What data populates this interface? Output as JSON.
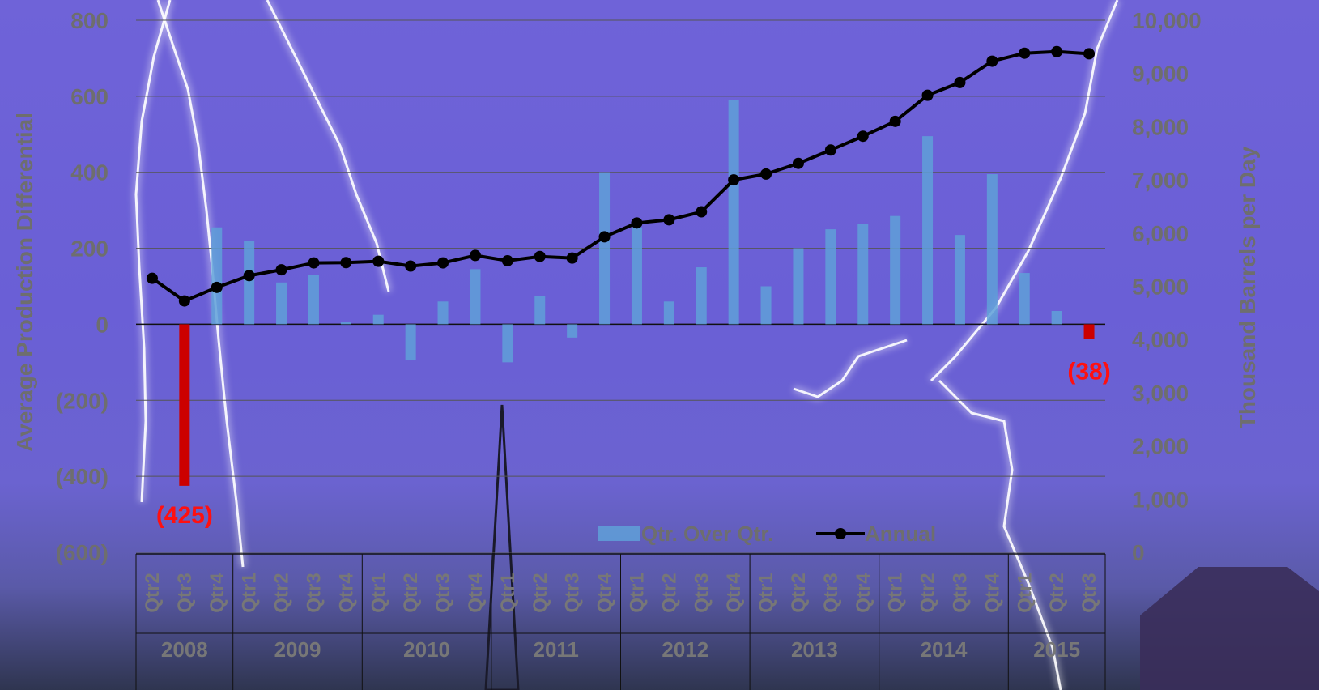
{
  "chart_data": {
    "type": "bar+line",
    "categories": [
      {
        "q": "Qtr2",
        "y": "2008"
      },
      {
        "q": "Qtr3",
        "y": "2008"
      },
      {
        "q": "Qtr4",
        "y": "2008"
      },
      {
        "q": "Qtr1",
        "y": "2009"
      },
      {
        "q": "Qtr2",
        "y": "2009"
      },
      {
        "q": "Qtr3",
        "y": "2009"
      },
      {
        "q": "Qtr4",
        "y": "2009"
      },
      {
        "q": "Qtr1",
        "y": "2010"
      },
      {
        "q": "Qtr2",
        "y": "2010"
      },
      {
        "q": "Qtr3",
        "y": "2010"
      },
      {
        "q": "Qtr4",
        "y": "2010"
      },
      {
        "q": "Qtr1",
        "y": "2011"
      },
      {
        "q": "Qtr2",
        "y": "2011"
      },
      {
        "q": "Qtr3",
        "y": "2011"
      },
      {
        "q": "Qtr4",
        "y": "2011"
      },
      {
        "q": "Qtr1",
        "y": "2012"
      },
      {
        "q": "Qtr2",
        "y": "2012"
      },
      {
        "q": "Qtr3",
        "y": "2012"
      },
      {
        "q": "Qtr4",
        "y": "2012"
      },
      {
        "q": "Qtr1",
        "y": "2013"
      },
      {
        "q": "Qtr2",
        "y": "2013"
      },
      {
        "q": "Qtr3",
        "y": "2013"
      },
      {
        "q": "Qtr4",
        "y": "2013"
      },
      {
        "q": "Qtr1",
        "y": "2014"
      },
      {
        "q": "Qtr2",
        "y": "2014"
      },
      {
        "q": "Qtr3",
        "y": "2014"
      },
      {
        "q": "Qtr4",
        "y": "2014"
      },
      {
        "q": "Qtr1",
        "y": "2015"
      },
      {
        "q": "Qtr2",
        "y": "2015"
      },
      {
        "q": "Qtr3",
        "y": "2015"
      }
    ],
    "years": [
      "2008",
      "2009",
      "2010",
      "2011",
      "2012",
      "2013",
      "2014",
      "2015"
    ],
    "series": [
      {
        "name": "Qtr. Over Qtr.",
        "axis": "left",
        "kind": "bar",
        "color": "#5fa0d8",
        "negative_color": "#cc0000",
        "values": [
          null,
          -425,
          255,
          220,
          110,
          130,
          5,
          25,
          -95,
          60,
          145,
          -100,
          75,
          -35,
          400,
          255,
          60,
          150,
          590,
          100,
          200,
          250,
          265,
          285,
          495,
          235,
          395,
          135,
          35,
          -38
        ]
      },
      {
        "name": "Annual",
        "axis": "right",
        "kind": "line",
        "color": "#000000",
        "values": [
          5150,
          4725,
          4980,
          5200,
          5310,
          5440,
          5445,
          5470,
          5380,
          5440,
          5580,
          5480,
          5560,
          5530,
          5930,
          6190,
          6250,
          6400,
          7000,
          7110,
          7310,
          7560,
          7820,
          8100,
          8590,
          8830,
          9230,
          9380,
          9410,
          9370
        ]
      }
    ],
    "highlight_labels": [
      {
        "index": 1,
        "text": "(425)"
      },
      {
        "index": 29,
        "text": "(38)"
      }
    ],
    "left_axis": {
      "title": "Average Production Differential",
      "min": -600,
      "max": 800,
      "ticks": [
        {
          "v": 800,
          "t": "800"
        },
        {
          "v": 600,
          "t": "600"
        },
        {
          "v": 400,
          "t": "400"
        },
        {
          "v": 200,
          "t": "200"
        },
        {
          "v": 0,
          "t": "0"
        },
        {
          "v": -200,
          "t": "(200)"
        },
        {
          "v": -400,
          "t": "(400)"
        },
        {
          "v": -600,
          "t": "(600)"
        }
      ]
    },
    "right_axis": {
      "title": "Thousand Barrels per Day",
      "min": 0,
      "max": 10000,
      "ticks": [
        {
          "v": 10000,
          "t": "10,000"
        },
        {
          "v": 9000,
          "t": "9,000"
        },
        {
          "v": 8000,
          "t": "8,000"
        },
        {
          "v": 7000,
          "t": "7,000"
        },
        {
          "v": 6000,
          "t": "6,000"
        },
        {
          "v": 5000,
          "t": "5,000"
        },
        {
          "v": 4000,
          "t": "4,000"
        },
        {
          "v": 3000,
          "t": "3,000"
        },
        {
          "v": 2000,
          "t": "2,000"
        },
        {
          "v": 1000,
          "t": "1,000"
        },
        {
          "v": 0,
          "t": "0"
        }
      ]
    },
    "grid": true,
    "legend": {
      "placement": "bottom-center",
      "entries": [
        "Qtr. Over Qtr.",
        "Annual"
      ]
    }
  }
}
